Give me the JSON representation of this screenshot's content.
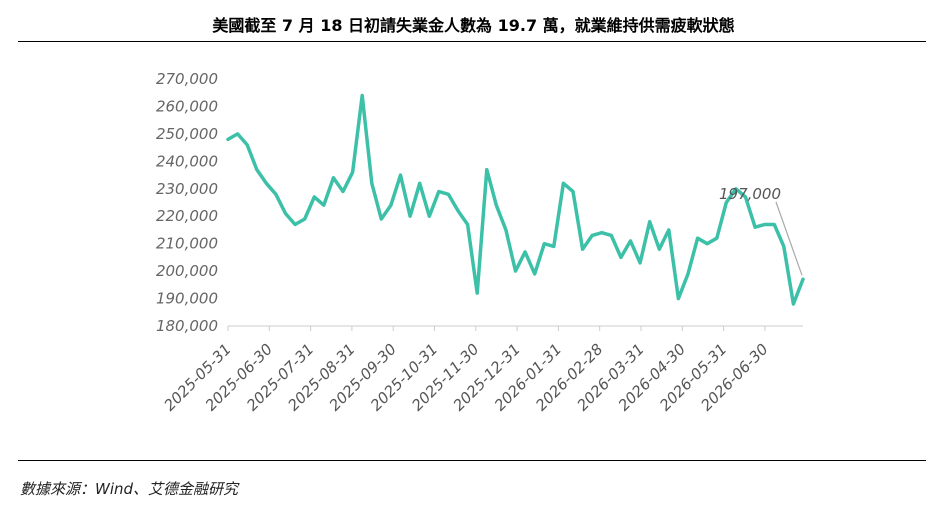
{
  "title": "美國截至 7 月 18 日初請失業金人數為 19.7 萬，就業維持供需疲軟狀態",
  "source": "數據來源：Wind、艾德金融研究",
  "colors": {
    "line": "#3cc0a8",
    "axis": "#cccccc",
    "text": "#555555",
    "annotation_leader": "#aaaaaa"
  },
  "chart_data": {
    "type": "line",
    "title": "美國截至 7 月 18 日初請失業金人數為 19.7 萬，就業維持供需疲軟狀態",
    "xlabel": "",
    "ylabel": "",
    "ylim": [
      180000,
      270000
    ],
    "y_ticks": [
      180000,
      190000,
      200000,
      210000,
      220000,
      230000,
      240000,
      250000,
      260000,
      270000
    ],
    "y_tick_labels": [
      "180,000",
      "190,000",
      "200,000",
      "210,000",
      "220,000",
      "230,000",
      "240,000",
      "250,000",
      "260,000",
      "270,000"
    ],
    "x_tick_labels": [
      "2025-05-31",
      "2025-06-30",
      "2025-07-31",
      "2025-08-31",
      "2025-09-30",
      "2025-10-31",
      "2025-11-30",
      "2025-12-31",
      "2026-01-31",
      "2026-02-28",
      "2026-03-31",
      "2026-04-30",
      "2026-05-31",
      "2026-06-30"
    ],
    "grid": false,
    "legend": "none",
    "series": [
      {
        "values": [
          248000,
          250000,
          246000,
          237000,
          232000,
          228000,
          221000,
          217000,
          219000,
          227000,
          224000,
          234000,
          229000,
          236000,
          264000,
          232000,
          219000,
          224000,
          235000,
          220000,
          232000,
          220000,
          229000,
          228000,
          222000,
          217000,
          192000,
          237000,
          224000,
          215000,
          200000,
          207000,
          199000,
          210000,
          209000,
          232000,
          229000,
          208000,
          213000,
          214000,
          213000,
          205000,
          211000,
          203000,
          218000,
          208000,
          215000,
          190000,
          199000,
          212000,
          210000,
          212000,
          225000,
          230000,
          227000,
          216000,
          217000,
          217000,
          209000,
          188000,
          197000
        ]
      }
    ],
    "annotations": [
      {
        "text": "197,000",
        "value": 197000
      }
    ]
  }
}
